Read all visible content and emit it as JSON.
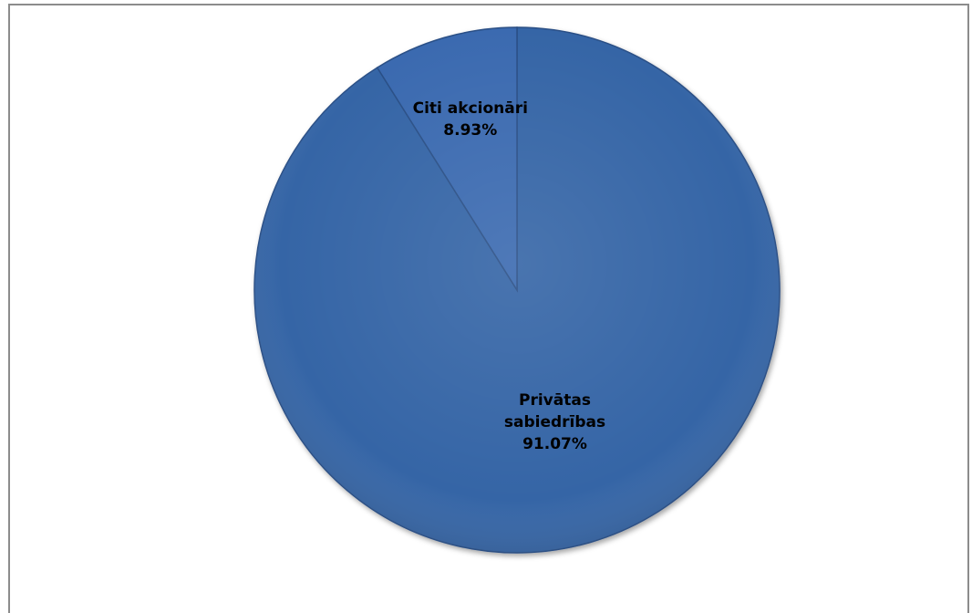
{
  "chart_data": {
    "type": "pie",
    "title": "",
    "slices": [
      {
        "label": "Privātas sabiedrības",
        "label_lines": [
          "Privātas",
          "sabiedrības"
        ],
        "value": 91.07,
        "value_label": "91.07%",
        "color": "#3565a6"
      },
      {
        "label": "Citi akcionāri",
        "label_lines": [
          "Citi akcionāri"
        ],
        "value": 8.93,
        "value_label": "8.93%",
        "color": "#3a6bb0"
      }
    ],
    "start_angle_deg": 0,
    "direction": "clockwise",
    "legend": "none",
    "data_labels": "inside"
  }
}
